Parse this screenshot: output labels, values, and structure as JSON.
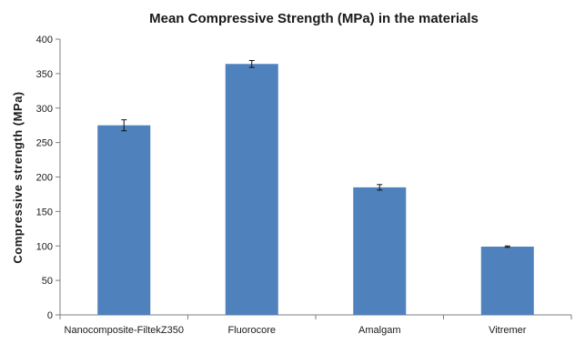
{
  "chart_data": {
    "type": "bar",
    "title": "Mean Compressive Strength (MPa) in the materials",
    "xlabel": "",
    "ylabel": "Compressive strength (MPa)",
    "categories": [
      "Nanocomposite-FiltekZ350",
      "Fluorocore",
      "Amalgam",
      "Vitremer"
    ],
    "values": [
      275,
      364,
      185,
      99
    ],
    "error": [
      8,
      5,
      4,
      1
    ],
    "ylim": [
      0,
      400
    ],
    "yticks": [
      0,
      50,
      100,
      150,
      200,
      250,
      300,
      350,
      400
    ],
    "bar_color": "#4F81BD",
    "grid": false,
    "legend": false
  }
}
